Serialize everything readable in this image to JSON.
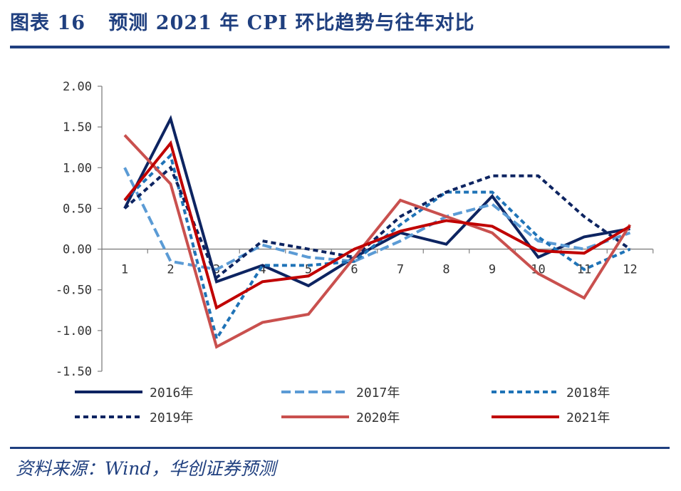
{
  "header": {
    "label": "图表",
    "number": "16",
    "text": "预测 2021 年 CPI 环比趋势与往年对比"
  },
  "footer": {
    "source": "资料来源：Wind，华创证券预测"
  },
  "chart_data": {
    "type": "line",
    "title": "预测 2021 年 CPI 环比趋势与往年对比",
    "xlabel": "",
    "ylabel": "",
    "categories": [
      "1",
      "2",
      "3",
      "4",
      "5",
      "6",
      "7",
      "8",
      "9",
      "10",
      "11",
      "12"
    ],
    "yticks": [
      "2.00",
      "1.50",
      "1.00",
      "0.50",
      "0.00",
      "-0.50",
      "-1.00",
      "-1.50"
    ],
    "ylim": [
      -1.5,
      2.0
    ],
    "legend_position": "bottom",
    "series": [
      {
        "name": "2016年",
        "color": "#0d2461",
        "style": "solid",
        "values": [
          0.5,
          1.6,
          -0.4,
          -0.2,
          -0.45,
          -0.1,
          0.2,
          0.06,
          0.65,
          -0.1,
          0.15,
          0.25
        ]
      },
      {
        "name": "2017年",
        "color": "#5b9bd5",
        "style": "dashed",
        "values": [
          1.0,
          -0.15,
          -0.25,
          0.05,
          -0.1,
          -0.15,
          0.1,
          0.4,
          0.55,
          0.1,
          0.0,
          0.2
        ]
      },
      {
        "name": "2018年",
        "color": "#1f73b7",
        "style": "dotted",
        "values": [
          0.6,
          1.15,
          -1.1,
          -0.2,
          -0.2,
          -0.15,
          0.3,
          0.7,
          0.7,
          0.15,
          -0.25,
          0.0
        ]
      },
      {
        "name": "2019年",
        "color": "#0d2461",
        "style": "dotted",
        "values": [
          0.5,
          1.0,
          -0.35,
          0.1,
          0.0,
          -0.1,
          0.4,
          0.7,
          0.9,
          0.9,
          0.4,
          0.0
        ]
      },
      {
        "name": "2020年",
        "color": "#c9504e",
        "style": "solid",
        "values": [
          1.4,
          0.8,
          -1.2,
          -0.9,
          -0.8,
          -0.1,
          0.6,
          0.4,
          0.2,
          -0.3,
          -0.6,
          0.3
        ]
      },
      {
        "name": "2021年",
        "color": "#c00000",
        "style": "solid",
        "values": [
          0.6,
          1.3,
          -0.72,
          -0.4,
          -0.33,
          0.0,
          0.22,
          0.35,
          0.28,
          -0.02,
          -0.05,
          0.28
        ]
      }
    ]
  }
}
